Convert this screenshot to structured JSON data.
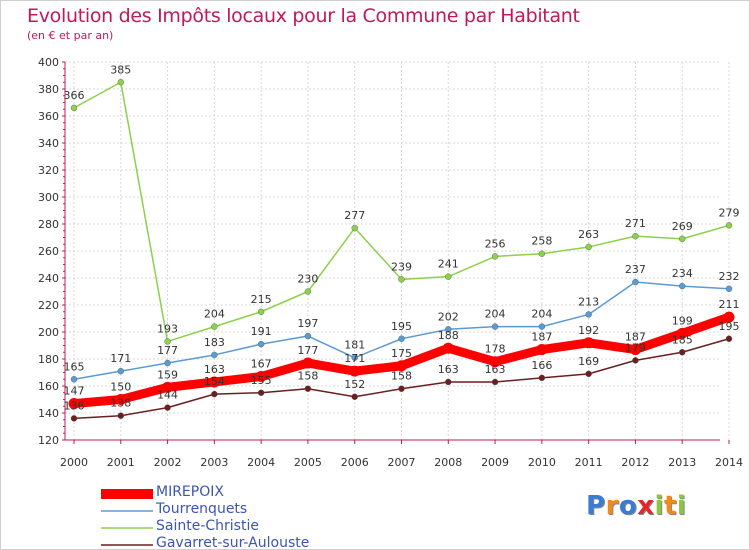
{
  "chart_data": {
    "type": "line",
    "title": "Evolution des Impôts locaux pour la Commune par Habitant",
    "subtitle": "(en € et par an)",
    "x": [
      2000,
      2001,
      2002,
      2003,
      2004,
      2005,
      2006,
      2007,
      2008,
      2009,
      2010,
      2011,
      2012,
      2013,
      2014
    ],
    "ylim": [
      120,
      400
    ],
    "yticks": [
      120,
      140,
      160,
      180,
      200,
      220,
      240,
      260,
      280,
      300,
      320,
      340,
      360,
      380,
      400
    ],
    "grid": true,
    "legend_position": "bottom-left",
    "series": [
      {
        "name": "Sainte-Christie",
        "color": "#8cd14a",
        "values": [
          366,
          385,
          193,
          204,
          215,
          230,
          277,
          239,
          241,
          256,
          258,
          263,
          271,
          269,
          279
        ],
        "labels": [
          "366",
          "385",
          "193",
          "204",
          "215",
          "230",
          "277",
          "239",
          "241",
          "256",
          "258",
          "263",
          "271",
          "269",
          "279"
        ]
      },
      {
        "name": "Tourrenquets",
        "color": "#5b9bd5",
        "values": [
          165,
          171,
          177,
          183,
          191,
          197,
          181,
          195,
          202,
          204,
          204,
          213,
          237,
          234,
          232
        ],
        "labels": [
          "165",
          "171",
          "177",
          "183",
          "191",
          "197",
          "181",
          "195",
          "202",
          "204",
          "204",
          "213",
          "237",
          "234",
          "232"
        ]
      },
      {
        "name": "Gavarret-sur-Aulouste",
        "color": "#6b1f1f",
        "values": [
          136,
          138,
          144,
          154,
          155,
          158,
          152,
          158,
          163,
          163,
          166,
          169,
          179,
          185,
          195
        ],
        "labels": [
          "136",
          "138",
          "144",
          "154",
          "155",
          "158",
          "152",
          "158",
          "163",
          "163",
          "166",
          "169",
          "179",
          "185",
          "195"
        ]
      },
      {
        "name": "MIREPOIX",
        "color": "#ff0000",
        "values": [
          147,
          150,
          159,
          163,
          167,
          177,
          171,
          175,
          188,
          178,
          187,
          192,
          187,
          199,
          211
        ],
        "labels": [
          "147",
          "150",
          "159",
          "163",
          "167",
          "177",
          "171",
          "175",
          "188",
          "178",
          "187",
          "192",
          "187",
          "199",
          "211"
        ]
      }
    ],
    "legend": [
      "MIREPOIX",
      "Tourrenquets",
      "Sainte-Christie",
      "Gavarret-sur-Aulouste"
    ]
  },
  "logo": {
    "letters": [
      "P",
      "r",
      "o",
      "x",
      "i",
      "t",
      "i"
    ],
    "colors": [
      "#3b7bd4",
      "#f08a1c",
      "#3b7bd4",
      "#e3262a",
      "#8cc63f",
      "#f08a1c",
      "#8cc63f"
    ]
  }
}
